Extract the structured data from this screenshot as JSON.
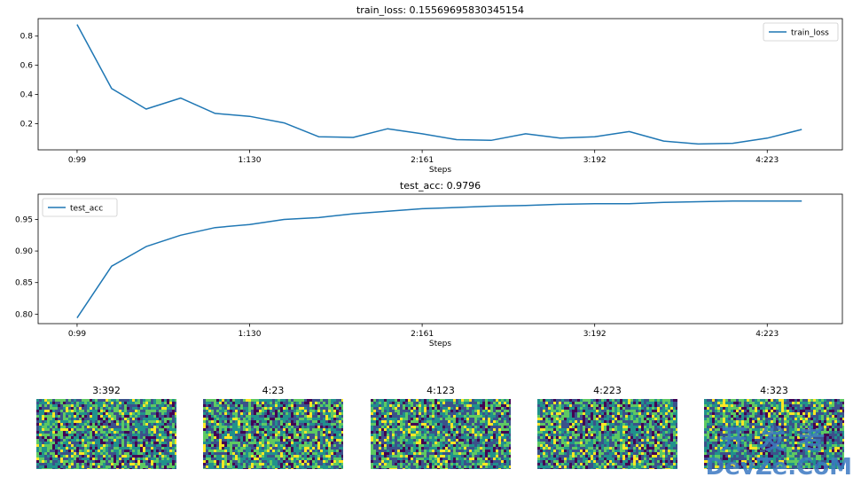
{
  "chart_data": [
    {
      "type": "line",
      "title": "train_loss: 0.15569695830345154",
      "xlabel": "Steps",
      "ylabel": "",
      "x_tick_labels": [
        "0:99",
        "1:130",
        "2:161",
        "3:192",
        "4:223"
      ],
      "x_tick_steps": [
        0,
        31,
        62,
        93,
        124
      ],
      "y_ticks": [
        0.2,
        0.4,
        0.6,
        0.8
      ],
      "ylim": [
        0.02,
        0.92
      ],
      "grid": false,
      "legend": "top-right",
      "series": [
        {
          "name": "train_loss",
          "color": "#1f77b4",
          "x": [
            0,
            6.2,
            12.4,
            18.6,
            24.8,
            31,
            37.2,
            43.4,
            49.6,
            55.8,
            62,
            68.2,
            74.4,
            80.6,
            86.8,
            93,
            99.2,
            105.4,
            111.6,
            117.8,
            124,
            130.2
          ],
          "y": [
            0.88,
            0.44,
            0.3,
            0.375,
            0.27,
            0.25,
            0.205,
            0.11,
            0.105,
            0.165,
            0.13,
            0.09,
            0.085,
            0.13,
            0.1,
            0.11,
            0.145,
            0.08,
            0.06,
            0.065,
            0.1,
            0.16
          ]
        }
      ]
    },
    {
      "type": "line",
      "title": "test_acc: 0.9796",
      "xlabel": "Steps",
      "ylabel": "",
      "x_tick_labels": [
        "0:99",
        "1:130",
        "2:161",
        "3:192",
        "4:223"
      ],
      "x_tick_steps": [
        0,
        31,
        62,
        93,
        124
      ],
      "y_ticks": [
        0.8,
        0.85,
        0.9,
        0.95
      ],
      "y_tick_labels": [
        "0.80",
        "0.85",
        "0.90",
        "0.95"
      ],
      "ylim": [
        0.785,
        0.99
      ],
      "grid": false,
      "legend": "top-left",
      "series": [
        {
          "name": "test_acc",
          "color": "#1f77b4",
          "x": [
            0,
            6.2,
            12.4,
            18.6,
            24.8,
            31,
            37.2,
            43.4,
            49.6,
            55.8,
            62,
            68.2,
            74.4,
            80.6,
            86.8,
            93,
            99.2,
            105.4,
            111.6,
            117.8,
            124,
            130.2
          ],
          "y": [
            0.794,
            0.876,
            0.907,
            0.925,
            0.937,
            0.942,
            0.95,
            0.953,
            0.959,
            0.963,
            0.967,
            0.969,
            0.971,
            0.972,
            0.974,
            0.975,
            0.975,
            0.977,
            0.978,
            0.979,
            0.979,
            0.979
          ]
        }
      ]
    },
    {
      "type": "heatmap",
      "panels": [
        {
          "title": "3:392"
        },
        {
          "title": "4:23"
        },
        {
          "title": "4:123"
        },
        {
          "title": "4:223"
        },
        {
          "title": "4:323"
        }
      ],
      "colormap": [
        "#440154",
        "#3b528b",
        "#21918c",
        "#5ec962",
        "#fde725"
      ]
    }
  ],
  "watermark": {
    "cn": "开发者",
    "en": "DevZe.CoM"
  }
}
